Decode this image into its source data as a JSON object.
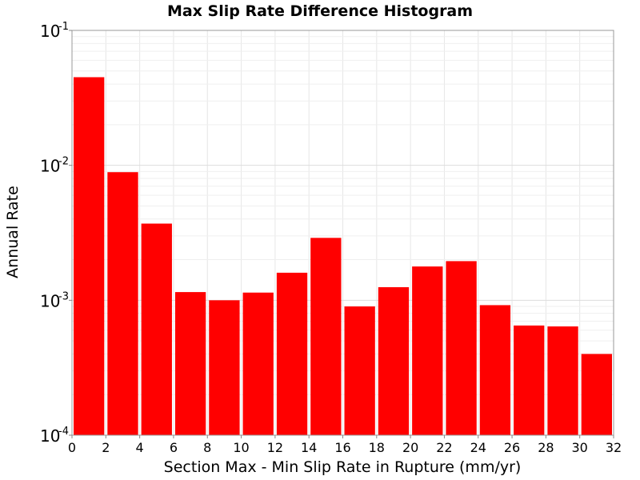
{
  "chart_data": {
    "type": "bar",
    "title": "Max Slip Rate Difference Histogram",
    "xlabel": "Section Max - Min Slip Rate in Rupture (mm/yr)",
    "ylabel": "Annual Rate",
    "xlim": [
      0,
      32
    ],
    "ylim": [
      0.0001,
      0.1
    ],
    "y_scale": "log",
    "grid": true,
    "bar_color": "#ff0000",
    "bin_width": 2,
    "x": [
      1,
      3,
      5,
      7,
      9,
      11,
      13,
      15,
      17,
      19,
      21,
      23,
      25,
      27,
      29,
      31
    ],
    "values": [
      0.045,
      0.0089,
      0.0037,
      0.00115,
      0.001,
      0.00114,
      0.0016,
      0.0029,
      0.0009,
      0.00125,
      0.00178,
      0.00195,
      0.00092,
      0.00065,
      0.00064,
      0.0004
    ],
    "x_ticks": [
      "0",
      "2",
      "4",
      "6",
      "8",
      "10",
      "12",
      "14",
      "16",
      "18",
      "20",
      "22",
      "24",
      "26",
      "28",
      "30",
      "32"
    ],
    "y_ticks": [
      {
        "base": "10",
        "exp": "-1",
        "value": 0.1
      },
      {
        "base": "10",
        "exp": "-2",
        "value": 0.01
      },
      {
        "base": "10",
        "exp": "-3",
        "value": 0.001
      },
      {
        "base": "10",
        "exp": "-4",
        "value": 0.0001
      }
    ]
  }
}
